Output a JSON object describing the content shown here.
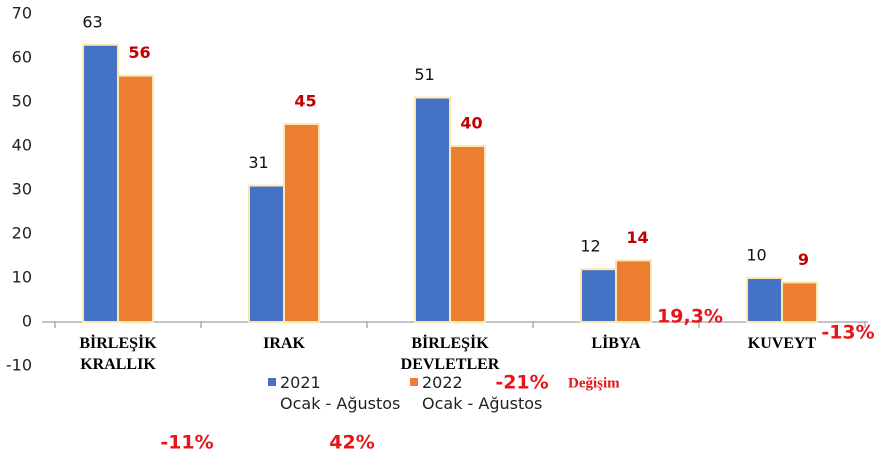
{
  "chart_data": {
    "type": "bar",
    "categories": [
      "BİRLEŞİK\nKRALLIK",
      "IRAK",
      "BİRLEŞİK\nDEVLETLER",
      "LİBYA",
      "KUVEYT"
    ],
    "series": [
      {
        "name": "2021\nOcak - Ağustos",
        "color": "#4472c4",
        "values": [
          63,
          31,
          51,
          12,
          10
        ]
      },
      {
        "name": "2022\nOcak - Ağustos",
        "color": "#ed7d31",
        "values": [
          56,
          45,
          40,
          14,
          9
        ]
      }
    ],
    "ylim": [
      -10,
      70
    ],
    "yticks": [
      -10,
      0,
      10,
      20,
      30,
      40,
      50,
      60,
      70
    ],
    "grid": false,
    "annotations": [
      "-11%",
      "42%",
      "-21%",
      "19,3%",
      "-13%"
    ],
    "change_label": "Değişim"
  }
}
